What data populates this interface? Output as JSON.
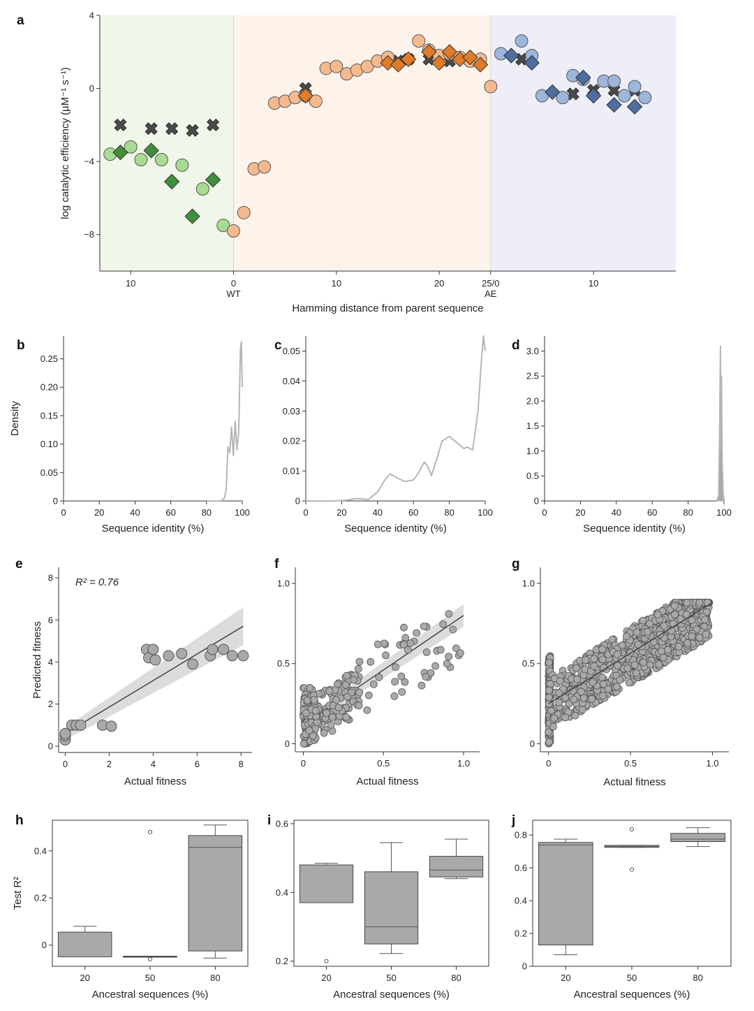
{
  "panel_letters": [
    "a",
    "b",
    "c",
    "d",
    "e",
    "f",
    "g",
    "h",
    "i",
    "j"
  ],
  "colors": {
    "green_fill": "#a8dc92",
    "green_dark": "#3f8f3c",
    "orange_fill": "#f4ba8e",
    "orange_dark": "#e07b2a",
    "blue_fill": "#9cb6dc",
    "blue_dark": "#4e6e9f",
    "cross": "#4a4a4a",
    "gray": "#a9a9a9",
    "ci": "#dcdcdc",
    "bg_green": "#f0f6e9",
    "bg_orange": "#fdf3ea",
    "bg_blue": "#edeef8"
  },
  "chart_data": [
    {
      "panel": "a",
      "type": "scatter",
      "ylabel": "log catalytic efficiency (µM⁻¹ s⁻¹)",
      "xlabel": "Hamming distance from parent sequence",
      "xlim": [
        -13,
        43
      ],
      "ylim": [
        -10,
        4
      ],
      "yticks": [
        4,
        0,
        -4,
        -8
      ],
      "ytick_labels": [
        "4",
        "0",
        "−4",
        "−8"
      ],
      "xticks": [
        {
          "x": -10,
          "label": "10",
          "sub": ""
        },
        {
          "x": 0,
          "label": "0",
          "sub": "WT"
        },
        {
          "x": 10,
          "label": "10",
          "sub": ""
        },
        {
          "x": 20,
          "label": "20",
          "sub": ""
        },
        {
          "x": 25,
          "label": "25/0",
          "sub": "AE"
        },
        {
          "x": 35,
          "label": "10",
          "sub": ""
        }
      ],
      "regions": [
        {
          "from": -13,
          "to": 0,
          "color": "bg_green"
        },
        {
          "from": 0,
          "to": 25,
          "color": "bg_orange"
        },
        {
          "from": 25,
          "to": 43,
          "color": "bg_blue"
        }
      ],
      "series": [
        {
          "marker": "circle",
          "color": "green_fill",
          "x": [
            -12,
            -10,
            -9,
            -7,
            -5,
            -3,
            -1
          ],
          "y": [
            -3.6,
            -3.2,
            -3.9,
            -3.9,
            -4.2,
            -5.5,
            -7.5
          ]
        },
        {
          "marker": "diamond",
          "color": "green_dark",
          "x": [
            -11,
            -8,
            -6,
            -4,
            -2
          ],
          "y": [
            -3.5,
            -3.4,
            -5.1,
            -7.0,
            -5.0
          ]
        },
        {
          "marker": "cross",
          "color": "cross",
          "x": [
            -11,
            -8,
            -6,
            -4,
            -2,
            7,
            16,
            17,
            19,
            21,
            23,
            24,
            28,
            33,
            35,
            37,
            39
          ],
          "y": [
            -2.0,
            -2.2,
            -2.2,
            -2.3,
            -2.0,
            0.0,
            1.5,
            1.6,
            1.6,
            1.5,
            1.5,
            1.5,
            1.6,
            -0.3,
            -0.1,
            -0.1,
            -0.1
          ]
        },
        {
          "marker": "circle",
          "color": "orange_fill",
          "x": [
            0,
            1,
            2,
            3,
            4,
            5,
            6,
            7,
            8,
            9,
            10,
            11,
            12,
            13,
            14,
            15,
            18,
            19,
            20,
            21,
            22,
            23,
            24,
            25
          ],
          "y": [
            -7.8,
            -6.8,
            -4.4,
            -4.3,
            -0.8,
            -0.7,
            -0.5,
            -0.4,
            -0.7,
            1.1,
            1.2,
            0.8,
            1.0,
            1.2,
            1.5,
            1.7,
            2.6,
            2.1,
            1.8,
            1.9,
            1.7,
            1.5,
            1.6,
            0.1
          ]
        },
        {
          "marker": "diamond",
          "color": "orange_dark",
          "x": [
            7,
            15,
            16,
            17,
            19,
            20,
            21,
            22,
            23,
            24
          ],
          "y": [
            -0.4,
            1.4,
            1.3,
            1.6,
            2.0,
            1.4,
            2.0,
            1.6,
            1.7,
            1.3
          ]
        },
        {
          "marker": "circle",
          "color": "blue_fill",
          "x": [
            26,
            28,
            29,
            30,
            32,
            33,
            34,
            36,
            37,
            38,
            39,
            40
          ],
          "y": [
            1.9,
            2.6,
            1.8,
            -0.4,
            -0.5,
            0.7,
            0.5,
            0.4,
            0.4,
            -0.4,
            0.1,
            -0.5
          ]
        },
        {
          "marker": "diamond",
          "color": "blue_dark",
          "x": [
            27,
            29,
            31,
            34,
            35,
            37,
            39
          ],
          "y": [
            1.8,
            1.4,
            -0.2,
            0.6,
            -0.4,
            -0.9,
            -1.0
          ]
        }
      ]
    },
    {
      "panel": "b",
      "type": "area",
      "ylabel": "Density",
      "xlabel": "Sequence identity (%)",
      "xlim": [
        0,
        100
      ],
      "ylim": [
        0,
        0.29
      ],
      "xticks": [
        0,
        20,
        40,
        60,
        80,
        100
      ],
      "yticks": [
        0,
        0.05,
        0.1,
        0.15,
        0.2,
        0.25
      ],
      "ytick_labels": [
        "0",
        "0.05",
        "0.10",
        "0.15",
        "0.20",
        "0.25"
      ],
      "x": [
        80,
        88,
        90,
        91,
        92,
        93,
        94,
        95,
        96,
        97,
        98,
        99,
        99.5,
        100
      ],
      "y": [
        0,
        0,
        0.005,
        0.02,
        0.095,
        0.085,
        0.13,
        0.08,
        0.14,
        0.09,
        0.12,
        0.27,
        0.28,
        0.2
      ]
    },
    {
      "panel": "c",
      "type": "area",
      "ylabel": "",
      "xlabel": "Sequence identity (%)",
      "xlim": [
        0,
        100
      ],
      "ylim": [
        0,
        0.055
      ],
      "xticks": [
        0,
        20,
        40,
        60,
        80,
        100
      ],
      "yticks": [
        0,
        0.01,
        0.02,
        0.03,
        0.04,
        0.05
      ],
      "ytick_labels": [
        "0",
        "0.01",
        "0.02",
        "0.03",
        "0.04",
        "0.05"
      ],
      "x": [
        0,
        15,
        22,
        28,
        35,
        40,
        44,
        47,
        50,
        55,
        60,
        63,
        66,
        68,
        70,
        73,
        76,
        80,
        84,
        88,
        90,
        93,
        96,
        98,
        99,
        100
      ],
      "y": [
        0,
        0,
        0.0002,
        0.0008,
        0.0005,
        0.003,
        0.007,
        0.009,
        0.008,
        0.0065,
        0.007,
        0.0095,
        0.013,
        0.0115,
        0.0085,
        0.014,
        0.02,
        0.0215,
        0.0195,
        0.0175,
        0.018,
        0.017,
        0.03,
        0.048,
        0.055,
        0.05
      ]
    },
    {
      "panel": "d",
      "type": "area",
      "ylabel": "",
      "xlabel": "Sequence identity (%)",
      "xlim": [
        0,
        100
      ],
      "ylim": [
        0,
        3.3
      ],
      "xticks": [
        0,
        20,
        40,
        60,
        80,
        100
      ],
      "yticks": [
        0,
        0.5,
        1.0,
        1.5,
        2.0,
        2.5,
        3.0
      ],
      "ytick_labels": [
        "0",
        "0.5",
        "1.0",
        "1.5",
        "2.0",
        "2.5",
        "3.0"
      ],
      "x": [
        96,
        97,
        97.5,
        98,
        98.3,
        98.6,
        99,
        99.5,
        100
      ],
      "y": [
        0,
        0.1,
        1.2,
        3.1,
        1.0,
        2.5,
        0.8,
        0.2,
        0
      ]
    },
    {
      "panel": "e",
      "type": "scatter",
      "ylabel": "Predicted fitness",
      "xlabel": "Actual fitness",
      "xlim": [
        -0.3,
        8.5
      ],
      "ylim": [
        -0.3,
        8.5
      ],
      "xticks": [
        0,
        2,
        4,
        6,
        8
      ],
      "yticks": [
        0,
        2,
        4,
        6,
        8
      ],
      "annotation": "R² = 0.76",
      "fit": {
        "x0": 0,
        "y0": 0.6,
        "x1": 8.1,
        "y1": 5.7
      },
      "x": [
        0,
        0,
        0,
        0.3,
        0.5,
        0.7,
        1.7,
        2.1,
        3.7,
        3.8,
        4.0,
        4.1,
        4.7,
        5.3,
        5.8,
        6.6,
        6.7,
        7.2,
        7.6,
        8.1
      ],
      "y": [
        0.3,
        0.5,
        0.6,
        1.0,
        1.0,
        1.0,
        1.0,
        0.95,
        4.6,
        4.2,
        4.6,
        4.1,
        4.3,
        4.4,
        3.9,
        4.3,
        4.6,
        4.6,
        4.3,
        4.3
      ]
    },
    {
      "panel": "f",
      "type": "scatter",
      "ylabel": "",
      "xlabel": "Actual fitness",
      "xlim": [
        -0.05,
        1.1
      ],
      "ylim": [
        -0.05,
        1.1
      ],
      "xticks": [
        0,
        0.5,
        1.0
      ],
      "yticks": [
        0,
        0.5,
        1.0
      ],
      "xtick_labels": [
        "0",
        "0.5",
        "1.0"
      ],
      "ytick_labels": [
        "0",
        "0.5",
        "1.0"
      ],
      "fit": {
        "x0": 0,
        "y0": 0.12,
        "x1": 1.0,
        "y1": 0.8
      }
    },
    {
      "panel": "g",
      "type": "scatter",
      "ylabel": "",
      "xlabel": "Actual fitness",
      "xlim": [
        -0.05,
        1.1
      ],
      "ylim": [
        -0.05,
        1.1
      ],
      "xticks": [
        0,
        0.5,
        1.0
      ],
      "yticks": [
        0,
        0.5,
        1.0
      ],
      "xtick_labels": [
        "0",
        "0.5",
        "1.0"
      ],
      "ytick_labels": [
        "0",
        "0.5",
        "1.0"
      ],
      "fit": {
        "x0": 0,
        "y0": 0.25,
        "x1": 1.0,
        "y1": 0.88
      }
    },
    {
      "panel": "h",
      "type": "box",
      "ylabel": "Test R²",
      "xlabel": "Ancestral sequences (%)",
      "ylim": [
        -0.09,
        0.53
      ],
      "yticks": [
        0,
        0.2,
        0.4
      ],
      "ytick_labels": [
        "0",
        "0.2",
        "0.4"
      ],
      "categories": [
        "20",
        "50",
        "80"
      ],
      "boxes": [
        {
          "q1": -0.05,
          "median": -0.05,
          "q3": 0.055,
          "wlo": -0.05,
          "whi": 0.08,
          "fliers": []
        },
        {
          "q1": -0.05,
          "median": -0.05,
          "q3": -0.047,
          "wlo": -0.05,
          "whi": -0.047,
          "fliers": [
            0.48,
            -0.06
          ]
        },
        {
          "q1": -0.025,
          "median": 0.415,
          "q3": 0.465,
          "wlo": -0.055,
          "whi": 0.51,
          "fliers": []
        }
      ]
    },
    {
      "panel": "i",
      "type": "box",
      "ylabel": "",
      "xlabel": "Ancestral sequences (%)",
      "ylim": [
        0.185,
        0.61
      ],
      "yticks": [
        0.2,
        0.4,
        0.6
      ],
      "ytick_labels": [
        "0.2",
        "0.4",
        "0.6"
      ],
      "categories": [
        "20",
        "50",
        "80"
      ],
      "boxes": [
        {
          "q1": 0.37,
          "median": 0.37,
          "q3": 0.48,
          "wlo": 0.37,
          "whi": 0.485,
          "fliers": [
            0.2
          ]
        },
        {
          "q1": 0.25,
          "median": 0.3,
          "q3": 0.46,
          "wlo": 0.222,
          "whi": 0.545,
          "fliers": []
        },
        {
          "q1": 0.445,
          "median": 0.465,
          "q3": 0.505,
          "wlo": 0.44,
          "whi": 0.555,
          "fliers": []
        }
      ]
    },
    {
      "panel": "j",
      "type": "box",
      "ylabel": "",
      "xlabel": "Ancestral sequences (%)",
      "ylim": [
        0,
        0.89
      ],
      "yticks": [
        0,
        0.2,
        0.4,
        0.6,
        0.8
      ],
      "ytick_labels": [
        "0",
        "0.2",
        "0.4",
        "0.6",
        "0.8"
      ],
      "categories": [
        "20",
        "50",
        "80"
      ],
      "boxes": [
        {
          "q1": 0.13,
          "median": 0.74,
          "q3": 0.755,
          "wlo": 0.07,
          "whi": 0.775,
          "fliers": []
        },
        {
          "q1": 0.725,
          "median": 0.73,
          "q3": 0.737,
          "wlo": 0.725,
          "whi": 0.737,
          "fliers": [
            0.835,
            0.59
          ]
        },
        {
          "q1": 0.76,
          "median": 0.775,
          "q3": 0.81,
          "wlo": 0.73,
          "whi": 0.845,
          "fliers": []
        }
      ]
    }
  ]
}
